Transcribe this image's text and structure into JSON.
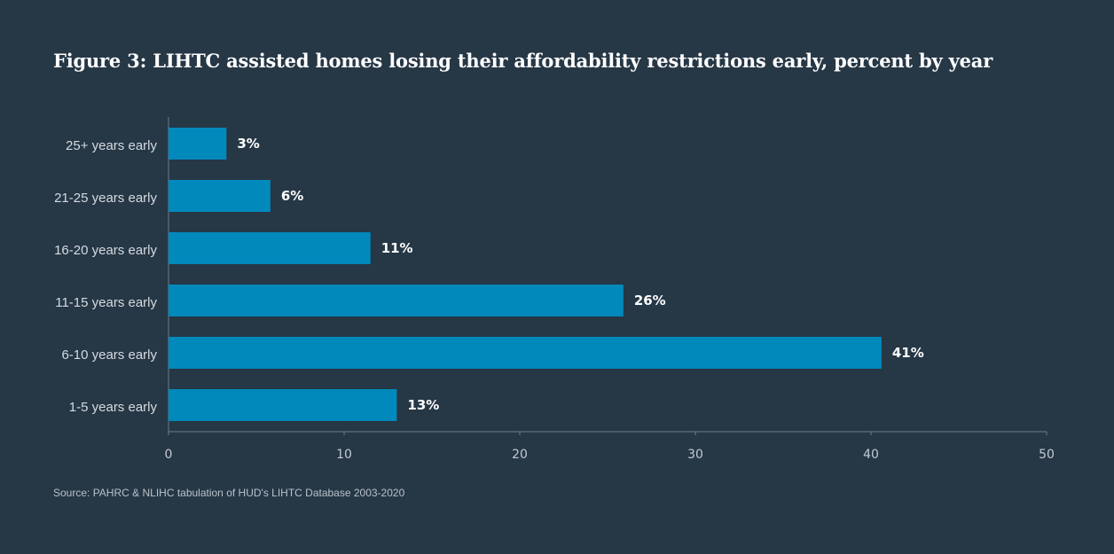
{
  "chart_data": {
    "type": "bar",
    "orientation": "horizontal",
    "title": "Figure 3: LIHTC assisted homes losing their affordability restrictions early, percent by year",
    "categories": [
      "25+ years early",
      "21-25 years early",
      "16-20 years early",
      "11-15 years early",
      "6-10 years early",
      "1-5 years early"
    ],
    "values": [
      3.3,
      5.8,
      11.5,
      25.9,
      40.6,
      13.0
    ],
    "data_labels": [
      "3%",
      "6%",
      "11%",
      "26%",
      "41%",
      "13%"
    ],
    "xlim": [
      0,
      50
    ],
    "xticks": [
      0,
      10,
      20,
      30,
      40,
      50
    ],
    "xtick_labels": [
      "0",
      "10",
      "20",
      "30",
      "40",
      "50"
    ],
    "xlabel": "",
    "ylabel": "",
    "grid": false,
    "legend": "none",
    "bar_color": "#0289bc",
    "source": "Source: PAHRC & NLIHC tabulation of HUD's LIHTC Database 2003-2020"
  }
}
